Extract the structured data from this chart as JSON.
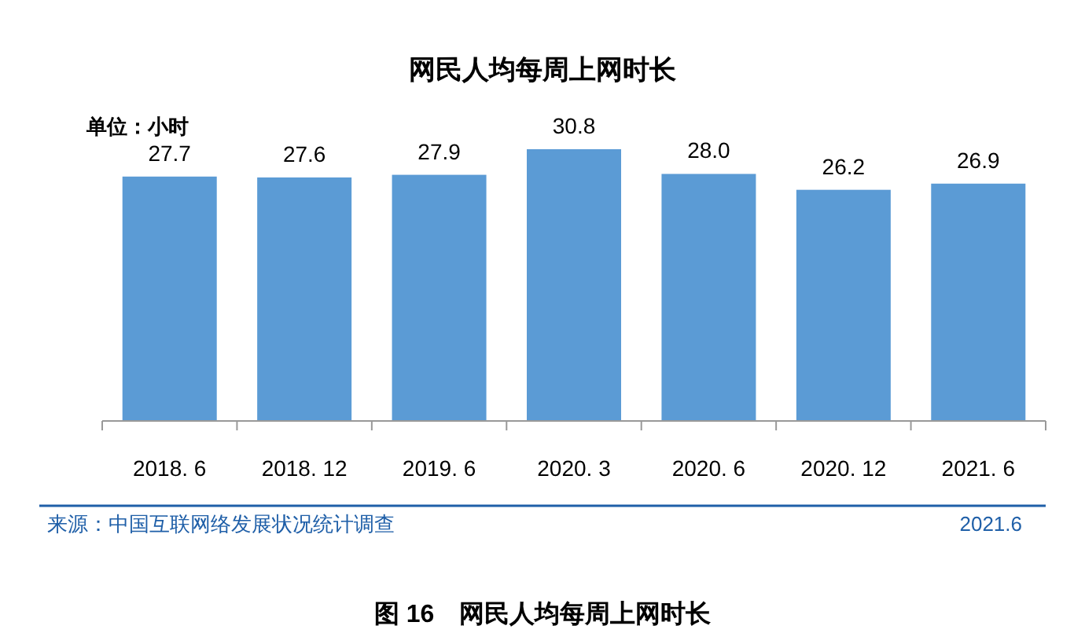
{
  "chart_data": {
    "type": "bar",
    "title": "网民人均每周上网时长",
    "categories": [
      "2018. 6",
      "2018. 12",
      "2019. 6",
      "2020. 3",
      "2020. 6",
      "2020. 12",
      "2021. 6"
    ],
    "values": [
      27.7,
      27.6,
      27.9,
      30.8,
      28.0,
      26.2,
      26.9
    ],
    "value_labels": [
      "27.7",
      "27.6",
      "27.9",
      "30.8",
      "28.0",
      "26.2",
      "26.9"
    ],
    "color": "#5b9bd5",
    "annotations": [
      "单位：小时",
      "来源：中国互联网络发展状况统计调查",
      "2021.6",
      "图 16　网民人均每周上网时长"
    ]
  }
}
